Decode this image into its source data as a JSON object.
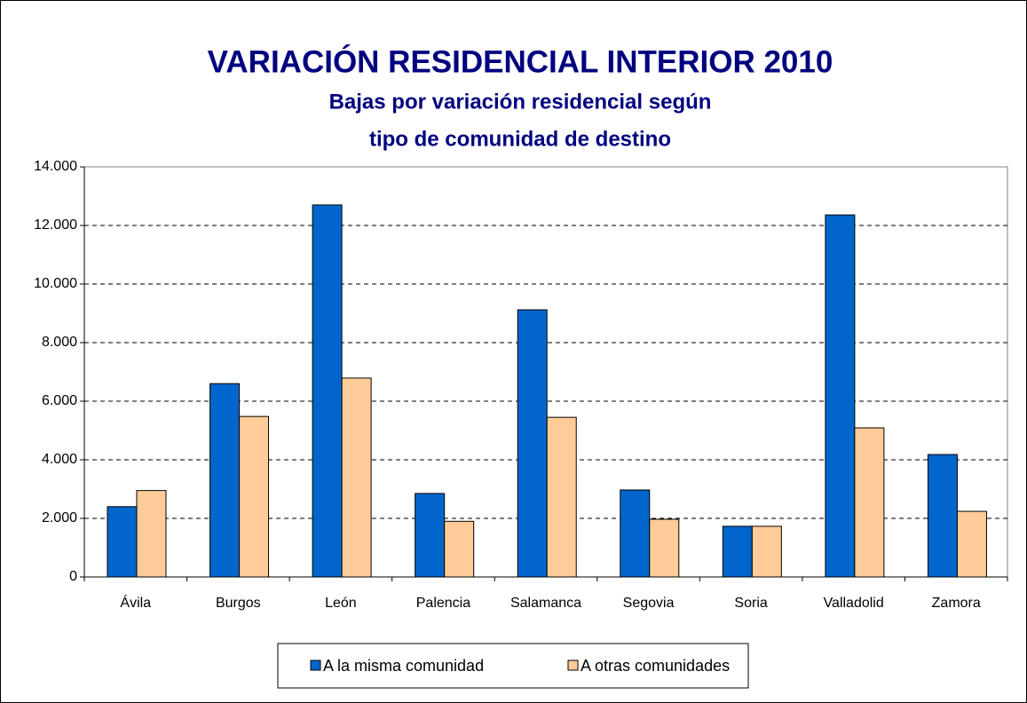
{
  "chart_data": {
    "type": "bar",
    "title": "VARIACIÓN RESIDENCIAL INTERIOR 2010",
    "subtitle": [
      "Bajas por variación residencial según",
      "tipo de comunidad de destino"
    ],
    "categories": [
      "Ávila",
      "Burgos",
      "León",
      "Palencia",
      "Salamanca",
      "Segovia",
      "Soria",
      "Valladolid",
      "Zamora"
    ],
    "series": [
      {
        "name": "A la misma comunidad",
        "color": "#0066cc",
        "values": [
          2400,
          6600,
          12700,
          2850,
          9120,
          2970,
          1730,
          12360,
          4180
        ]
      },
      {
        "name": "A otras comunidades",
        "color": "#ffcc99",
        "values": [
          2950,
          5480,
          6790,
          1900,
          5450,
          1970,
          1730,
          5090,
          2240
        ]
      }
    ],
    "ylim": [
      0,
      14000
    ],
    "yticks": [
      0,
      {
        "value": 2000,
        "label": "2.000"
      },
      {
        "value": 4000,
        "label": "4.000"
      },
      {
        "value": 6000,
        "label": "6.000"
      },
      {
        "value": 8000,
        "label": "8.000"
      },
      {
        "value": 10000,
        "label": "10.000"
      },
      {
        "value": 12000,
        "label": "12.000"
      },
      {
        "value": 14000,
        "label": "14.000"
      }
    ],
    "grid": true,
    "legend": "bottom"
  }
}
